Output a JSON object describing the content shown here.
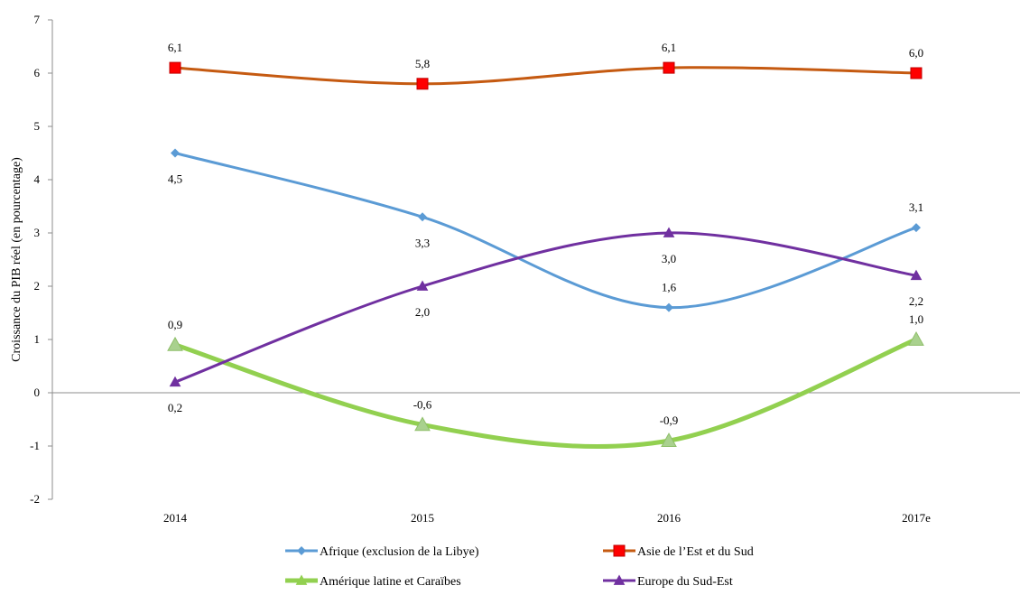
{
  "chart_data": {
    "type": "line",
    "title": "",
    "xlabel": "",
    "ylabel": "Croissance du PIB réel (en pourcentage)",
    "categories": [
      "2014",
      "2015",
      "2016",
      "2017e"
    ],
    "ylim": [
      -2,
      7
    ],
    "yticks": [
      "-2",
      "-1",
      "0",
      "1",
      "2",
      "3",
      "4",
      "5",
      "6",
      "7"
    ],
    "grid": false,
    "legend_position": "bottom",
    "series": [
      {
        "name": "Afrique (exclusion de la Libye)",
        "values": [
          4.5,
          3.3,
          1.6,
          3.1
        ],
        "labels": [
          "4,5",
          "3,3",
          "1,6",
          "3,1"
        ],
        "color": "#5b9bd5",
        "marker": "diamond"
      },
      {
        "name": "Asie de l’Est et du Sud",
        "values": [
          6.1,
          5.8,
          6.1,
          6.0
        ],
        "labels": [
          "6,1",
          "5,8",
          "6,1",
          "6,0"
        ],
        "color": "#c55a11",
        "marker": "square"
      },
      {
        "name": "Amérique latine et Caraïbes",
        "values": [
          0.9,
          -0.6,
          -0.9,
          1.0
        ],
        "labels": [
          "0,9",
          "-0,6",
          "-0,9",
          "1,0"
        ],
        "color": "#92d050",
        "marker": "triangle"
      },
      {
        "name": "Europe du Sud-Est",
        "values": [
          0.2,
          2.0,
          3.0,
          2.2
        ],
        "labels": [
          "0,2",
          "2,0",
          "3,0",
          "2,2"
        ],
        "color": "#7030a0",
        "marker": "triangle"
      }
    ]
  }
}
